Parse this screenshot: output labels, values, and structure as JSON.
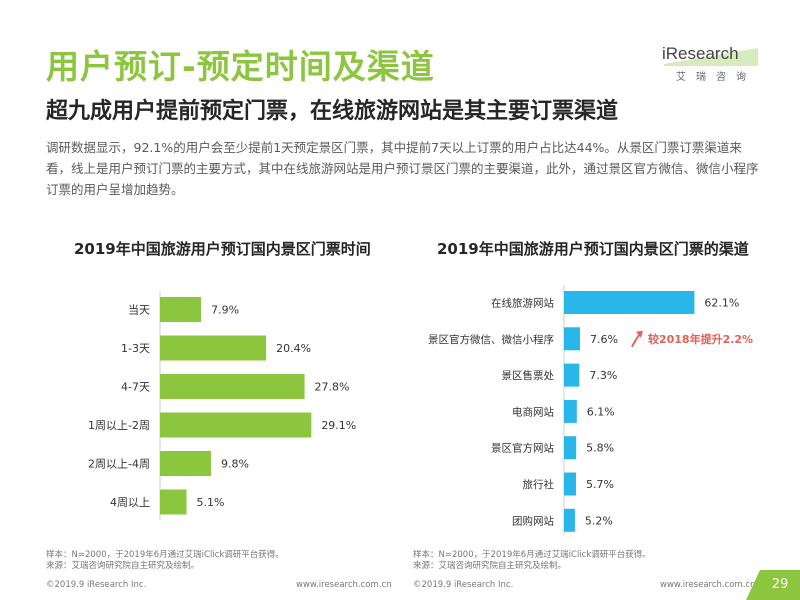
{
  "header": {
    "title": "用户预订-预定时间及渠道",
    "subtitle": "超九成用户提前预定门票，在线旅游网站是其主要订票渠道",
    "body": "调研数据显示，92.1%的用户会至少提前1天预定景区门票，其中提前7天以上订票的用户占比达44%。从景区门票订票渠道来看，线上是用户预订门票的主要方式，其中在线旅游网站是用户预订景区门票的主要渠道，此外，通过景区官方微信、微信小程序订票的用户呈增加趋势。"
  },
  "logo": {
    "text": "iResearch",
    "cn": "艾瑞咨询"
  },
  "colors": {
    "green": "#8cc63f",
    "blue": "#29b6e8",
    "red": "#e2615a",
    "label": "#333333"
  },
  "chart_data": [
    {
      "type": "bar",
      "orientation": "horizontal",
      "title": "2019年中国旅游用户预订国内景区门票时间",
      "categories": [
        "当天",
        "1-3天",
        "4-7天",
        "1周以上-2周",
        "2周以上-4周",
        "4周以上"
      ],
      "values": [
        7.9,
        20.4,
        27.8,
        29.1,
        9.8,
        5.1
      ],
      "value_labels": [
        "7.9%",
        "20.4%",
        "27.8%",
        "29.1%",
        "9.8%",
        "5.1%"
      ],
      "unit": "%",
      "xlim": [
        0,
        35
      ]
    },
    {
      "type": "bar",
      "orientation": "horizontal",
      "title": "2019年中国旅游用户预订国内景区门票的渠道",
      "categories": [
        "在线旅游网站",
        "景区官方微信、微信小程序",
        "景区售票处",
        "电商网站",
        "景区官方网站",
        "旅行社",
        "团购网站"
      ],
      "values": [
        62.1,
        7.6,
        7.3,
        6.1,
        5.8,
        5.7,
        5.2
      ],
      "value_labels": [
        "62.1%",
        "7.6%",
        "7.3%",
        "6.1%",
        "5.8%",
        "5.7%",
        "5.2%"
      ],
      "unit": "%",
      "xlim": [
        0,
        70
      ],
      "annotation": {
        "category": "景区官方微信、微信小程序",
        "text": "较2018年提升2.2%"
      }
    }
  ],
  "notes": {
    "left": [
      "样本：N=2000，于2019年6月通过艾瑞iClick调研平台获得。",
      "来源：艾瑞咨询研究院自主研究及绘制。"
    ],
    "right": [
      "样本：N=2000，于2019年6月通过艾瑞iClick调研平台获得。",
      "来源：艾瑞咨询研究院自主研究及绘制。"
    ]
  },
  "footer": {
    "copyright": "©2019.9 iResearch Inc.",
    "url": "www.iresearch.com.cn",
    "page": "29"
  }
}
